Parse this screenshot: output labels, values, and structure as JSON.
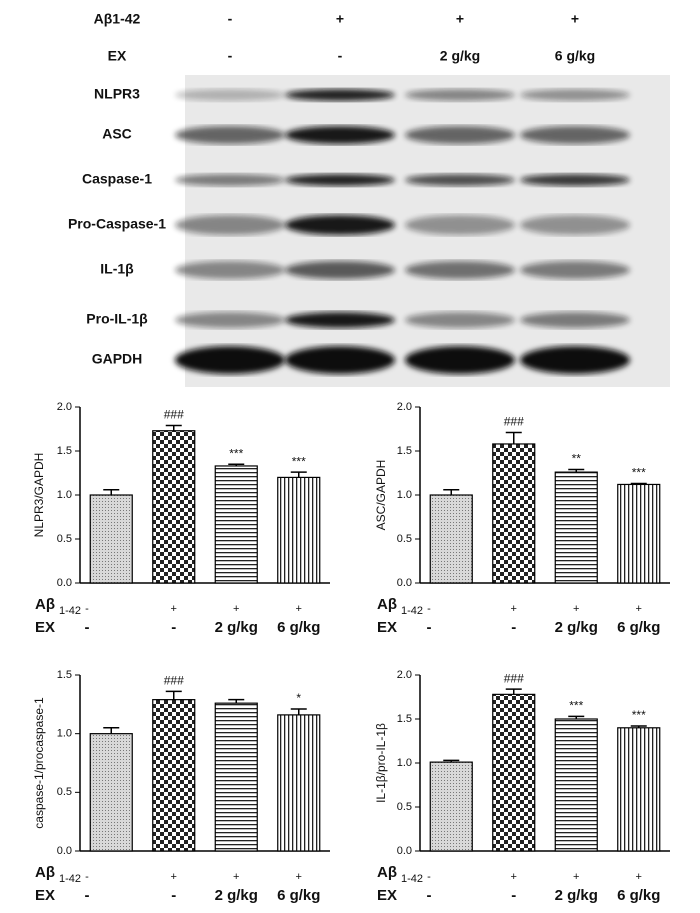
{
  "blot": {
    "header": [
      {
        "label": "Aβ1-42",
        "lanes": [
          "-",
          "+",
          "+",
          "+"
        ]
      },
      {
        "label": "EX",
        "lanes": [
          "-",
          "-",
          "2 g/kg",
          "6 g/kg"
        ]
      }
    ],
    "rows": [
      "NLPR3",
      "ASC",
      "Caspase-1",
      "Pro-Caspase-1",
      "IL-1β",
      "Pro-IL-1β",
      "GAPDH"
    ]
  },
  "chart_data": [
    {
      "type": "bar",
      "ylabel": "NLPR3/GAPDH",
      "ylim": [
        0,
        2
      ],
      "yticks": [
        {
          "value": 0,
          "label": "0.0"
        },
        0.5,
        {
          "value": 1,
          "label": "1.0"
        },
        1.5,
        {
          "value": 2,
          "label": "2.0"
        }
      ],
      "values": [
        1.0,
        1.73,
        1.33,
        1.2
      ],
      "errors": [
        0.06,
        0.06,
        0.02,
        0.06
      ],
      "annotations": [
        null,
        "###",
        "***",
        "***"
      ],
      "patterns": [
        "dots",
        "checker",
        "hlines",
        "vlines"
      ],
      "color": "#000000",
      "treatments": [
        {
          "name": "Aβ",
          "subscript": "1-42",
          "levels": [
            "-",
            "+",
            "+",
            "+"
          ]
        },
        {
          "name": "EX",
          "levels": [
            "-",
            "-",
            "2 g/kg",
            "6 g/kg"
          ]
        }
      ]
    },
    {
      "type": "bar",
      "ylabel": "ASC/GAPDH",
      "ylim": [
        0,
        2
      ],
      "yticks": [
        {
          "value": 0,
          "label": "0.0"
        },
        0.5,
        {
          "value": 1,
          "label": "1.0"
        },
        1.5,
        {
          "value": 2,
          "label": "2.0"
        }
      ],
      "values": [
        1.0,
        1.58,
        1.26,
        1.12
      ],
      "errors": [
        0.06,
        0.13,
        0.03,
        0.01
      ],
      "annotations": [
        null,
        "###",
        "**",
        "***"
      ],
      "patterns": [
        "dots",
        "checker",
        "hlines",
        "vlines"
      ],
      "color": "#000000",
      "treatments": [
        {
          "name": "Aβ",
          "subscript": "1-42",
          "levels": [
            "-",
            "+",
            "+",
            "+"
          ]
        },
        {
          "name": "EX",
          "levels": [
            "-",
            "-",
            "2 g/kg",
            "6 g/kg"
          ]
        }
      ]
    },
    {
      "type": "bar",
      "ylabel": "caspase-1/procaspase-1",
      "ylim": [
        0,
        1.5
      ],
      "yticks": [
        {
          "value": 0,
          "label": "0.0"
        },
        0.5,
        {
          "value": 1,
          "label": "1.0"
        },
        1.5
      ],
      "values": [
        1.0,
        1.29,
        1.26,
        1.16
      ],
      "errors": [
        0.05,
        0.07,
        0.03,
        0.05
      ],
      "annotations": [
        null,
        "###",
        null,
        "*"
      ],
      "patterns": [
        "dots",
        "checker",
        "hlines",
        "vlines"
      ],
      "color": "#000000",
      "treatments": [
        {
          "name": "Aβ",
          "subscript": "1-42",
          "levels": [
            "-",
            "+",
            "+",
            "+"
          ]
        },
        {
          "name": "EX",
          "levels": [
            "-",
            "-",
            "2 g/kg",
            "6 g/kg"
          ]
        }
      ]
    },
    {
      "type": "bar",
      "ylabel": "IL-1β/pro-IL-1β",
      "ylim": [
        0,
        2
      ],
      "yticks": [
        {
          "value": 0,
          "label": "0.0"
        },
        0.5,
        {
          "value": 1,
          "label": "1.0"
        },
        1.5,
        {
          "value": 2,
          "label": "2.0"
        }
      ],
      "values": [
        1.01,
        1.78,
        1.5,
        1.4
      ],
      "errors": [
        0.02,
        0.06,
        0.03,
        0.02
      ],
      "annotations": [
        null,
        "###",
        "***",
        "***"
      ],
      "patterns": [
        "dots",
        "checker",
        "hlines",
        "vlines"
      ],
      "color": "#000000",
      "treatments": [
        {
          "name": "Aβ",
          "subscript": "1-42",
          "levels": [
            "-",
            "+",
            "+",
            "+"
          ]
        },
        {
          "name": "EX",
          "levels": [
            "-",
            "-",
            "2 g/kg",
            "6 g/kg"
          ]
        }
      ]
    }
  ]
}
